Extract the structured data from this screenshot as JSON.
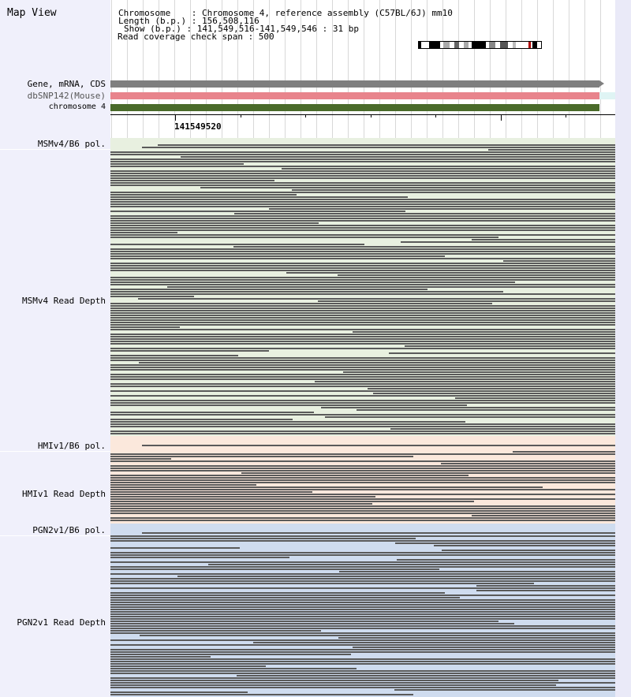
{
  "app": {
    "title": "Map View"
  },
  "info": {
    "chromosome_label": "Chromosome    : Chromosome 4, reference assembly (C57BL/6J) mm10",
    "length_label": "Length (b.p.) : 156,508,116",
    "show_label": "Show (b.p.) : 141,549,516-141,549,546 : 31 bp",
    "coverage_label": "Read coverage check span : 500"
  },
  "tracks": {
    "gene": {
      "label": "Gene, mRNA, CDS",
      "color": "#7f7f7f"
    },
    "snp": {
      "label": "dbSNP142(Mouse)",
      "color": "#e8848c"
    },
    "chromosome": {
      "label": "chromosome 4",
      "color": "#4a6b2a"
    }
  },
  "ruler": {
    "position_label": "141549520"
  },
  "strains": [
    {
      "pol_label": "MSMv4/B6 pol.",
      "depth_label": "MSMv4 Read Depth",
      "band_color": "#e8f0e0"
    },
    {
      "pol_label": "HMIv1/B6 pol.",
      "depth_label": "HMIv1 Read Depth",
      "band_color": "#fbe8dc"
    },
    {
      "pol_label": "PGN2v1/B6 pol.",
      "depth_label": "PGN2v1 Read Depth",
      "band_color": "#cfdcef"
    }
  ],
  "colors": {
    "read": "#5a5a5a",
    "panel": "#f0f0fb"
  }
}
